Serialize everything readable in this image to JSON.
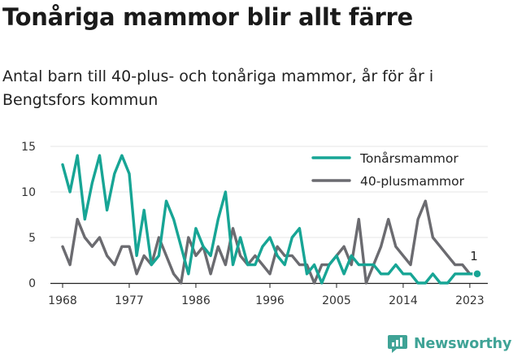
{
  "title": "Tonåriga mammor blir allt färre",
  "subtitle": "Antal barn till 40-plus- och tonåriga mammor, år för år i Bengtsfors kommun",
  "brand": {
    "name": "Newsworthy",
    "icon": "newsworthy-logo-icon"
  },
  "colors": {
    "teen": "#17a595",
    "forty": "#6b6b70"
  },
  "chart_data": {
    "type": "line",
    "title": "Tonåriga mammor blir allt färre",
    "subtitle": "Antal barn till 40-plus- och tonåriga mammor, år för år i Bengtsfors kommun",
    "xlabel": "",
    "ylabel": "",
    "x": [
      1968,
      1969,
      1970,
      1971,
      1972,
      1973,
      1974,
      1975,
      1976,
      1977,
      1978,
      1979,
      1980,
      1981,
      1982,
      1983,
      1984,
      1985,
      1986,
      1987,
      1988,
      1989,
      1990,
      1991,
      1992,
      1993,
      1994,
      1995,
      1996,
      1997,
      1998,
      1999,
      2000,
      2001,
      2002,
      2003,
      2004,
      2005,
      2006,
      2007,
      2008,
      2009,
      2010,
      2011,
      2012,
      2013,
      2014,
      2015,
      2016,
      2017,
      2018,
      2019,
      2020,
      2021,
      2022,
      2023,
      2024
    ],
    "xticks": [
      1968,
      1977,
      1986,
      1996,
      2005,
      2014,
      2023
    ],
    "xlim": [
      1968,
      2024
    ],
    "yticks": [
      0,
      5,
      10,
      15
    ],
    "ylim": [
      0,
      15
    ],
    "grid": "horizontal",
    "legend": "top-right",
    "series": [
      {
        "name": "Tonårsmammor",
        "color": "#17a595",
        "values": [
          13,
          10,
          14,
          7,
          11,
          14,
          8,
          12,
          14,
          12,
          3,
          8,
          2,
          3,
          9,
          7,
          4,
          1,
          6,
          4,
          3,
          7,
          10,
          2,
          5,
          2,
          2,
          4,
          5,
          3,
          2,
          5,
          6,
          1,
          2,
          0,
          2,
          3,
          1,
          3,
          2,
          2,
          2,
          1,
          1,
          2,
          1,
          1,
          0,
          0,
          1,
          0,
          0,
          1,
          1,
          1,
          1
        ]
      },
      {
        "name": "40-plusmammor",
        "color": "#6b6b70",
        "values": [
          4,
          2,
          7,
          5,
          4,
          5,
          3,
          2,
          4,
          4,
          1,
          3,
          2,
          5,
          3,
          1,
          0,
          5,
          3,
          4,
          1,
          4,
          2,
          6,
          3,
          2,
          3,
          2,
          1,
          4,
          3,
          3,
          2,
          2,
          0,
          2,
          2,
          3,
          4,
          2,
          7,
          0,
          2,
          4,
          7,
          4,
          3,
          2,
          7,
          9,
          5,
          4,
          3,
          2,
          2,
          1,
          1
        ]
      }
    ],
    "annotations": [
      {
        "x": 2024,
        "y": 1,
        "text": "1"
      }
    ]
  }
}
